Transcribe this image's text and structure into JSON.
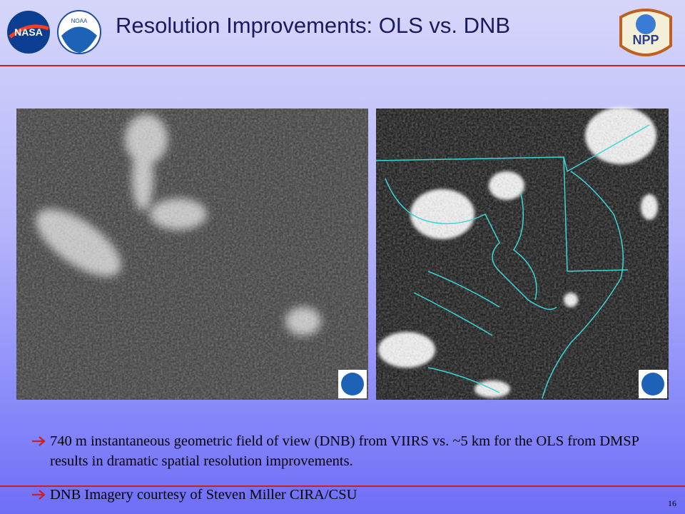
{
  "header": {
    "title": "Resolution Improvements: OLS vs. DNB",
    "logos": [
      "NASA",
      "NOAA",
      "NPP"
    ]
  },
  "bullets": [
    "740 m instantaneous geometric field of view (DNB) from VIIRS vs.  ~5 km for the OLS from DMSP results in dramatic spatial resolution improvements.",
    "DNB Imagery courtesy of Steven Miller CIRA/CSU"
  ],
  "page_number": "16"
}
